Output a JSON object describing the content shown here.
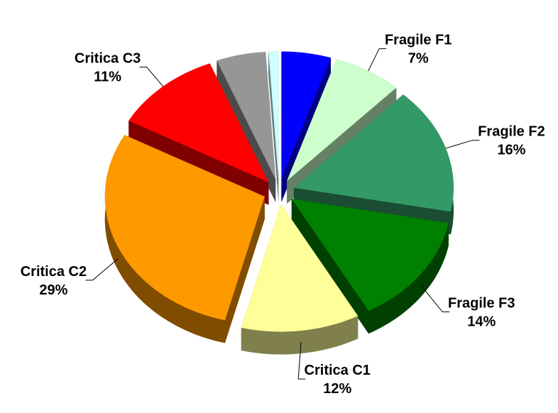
{
  "chart_data": {
    "type": "pie",
    "categories": [
      null,
      "Fragile F1",
      "Fragile F2",
      "Fragile F3",
      "Critica C1",
      "Critica C2",
      "Critica C3",
      null,
      null
    ],
    "values": [
      5,
      7,
      16,
      14,
      12,
      29,
      11,
      5,
      1
    ],
    "value_labels": [
      null,
      "7%",
      "16%",
      "14%",
      "12%",
      "29%",
      "11%",
      null,
      null
    ],
    "colors": [
      "#0000ff",
      "#ccffcc",
      "#339966",
      "#008000",
      "#ffff99",
      "#ff9900",
      "#ff0000",
      "#969696",
      "#ccffff"
    ]
  }
}
